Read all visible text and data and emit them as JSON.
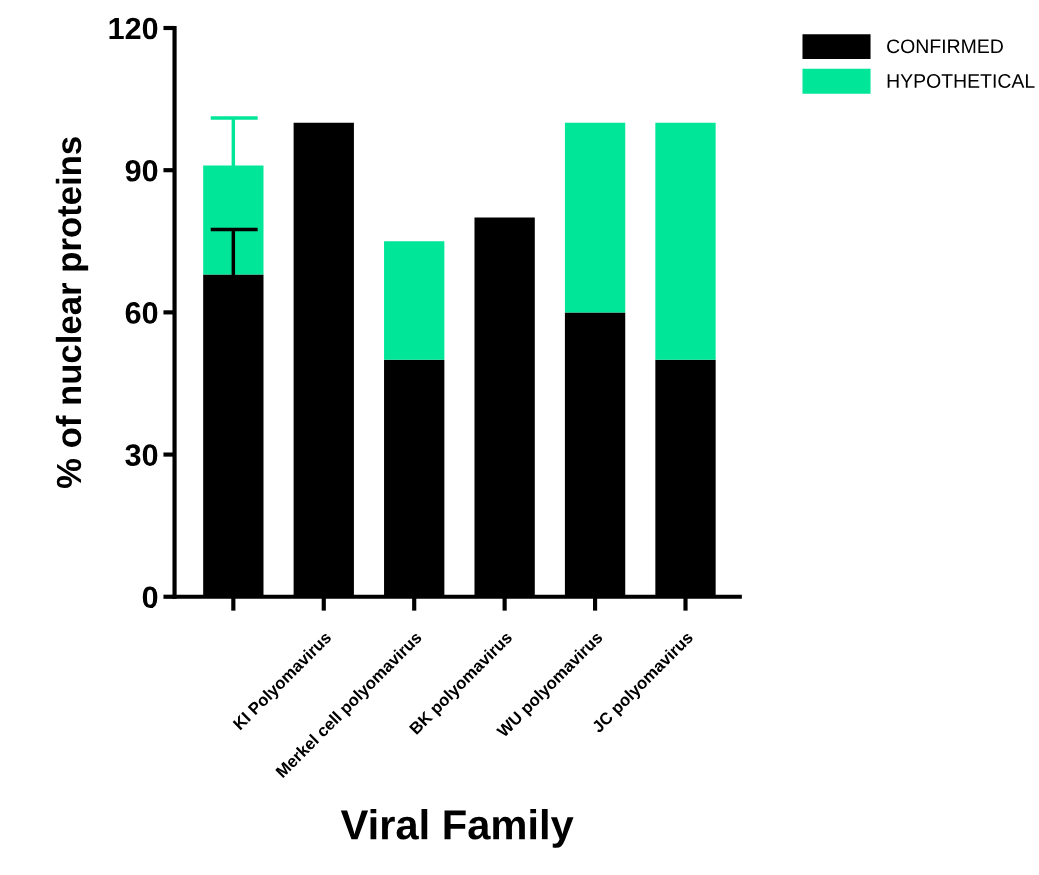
{
  "chart_data": {
    "type": "bar",
    "stacked": true,
    "xlabel": "Viral Family",
    "ylabel": "% of nuclear proteins",
    "categories": [
      null,
      "KI Polyomavirus",
      "Merkel cell polyomavirus",
      "BK polyomavirus",
      "WU polyomavirus",
      "JC polyomavirus"
    ],
    "series": [
      {
        "name": "CONFIRMED",
        "color": "#000000",
        "values": [
          68,
          100,
          50,
          80,
          60,
          50
        ],
        "errors": [
          [
            68,
            77.5
          ],
          null,
          null,
          null,
          null,
          null
        ]
      },
      {
        "name": "HYPOTHETICAL",
        "color": "#00e699",
        "values": [
          23,
          0,
          25,
          0,
          40,
          50
        ],
        "errors": [
          [
            91,
            101
          ],
          null,
          null,
          null,
          null,
          null
        ]
      }
    ],
    "ylim": [
      0,
      120
    ],
    "yticks": [
      0,
      30,
      60,
      90,
      120
    ],
    "grid": false,
    "legend": "top right"
  }
}
